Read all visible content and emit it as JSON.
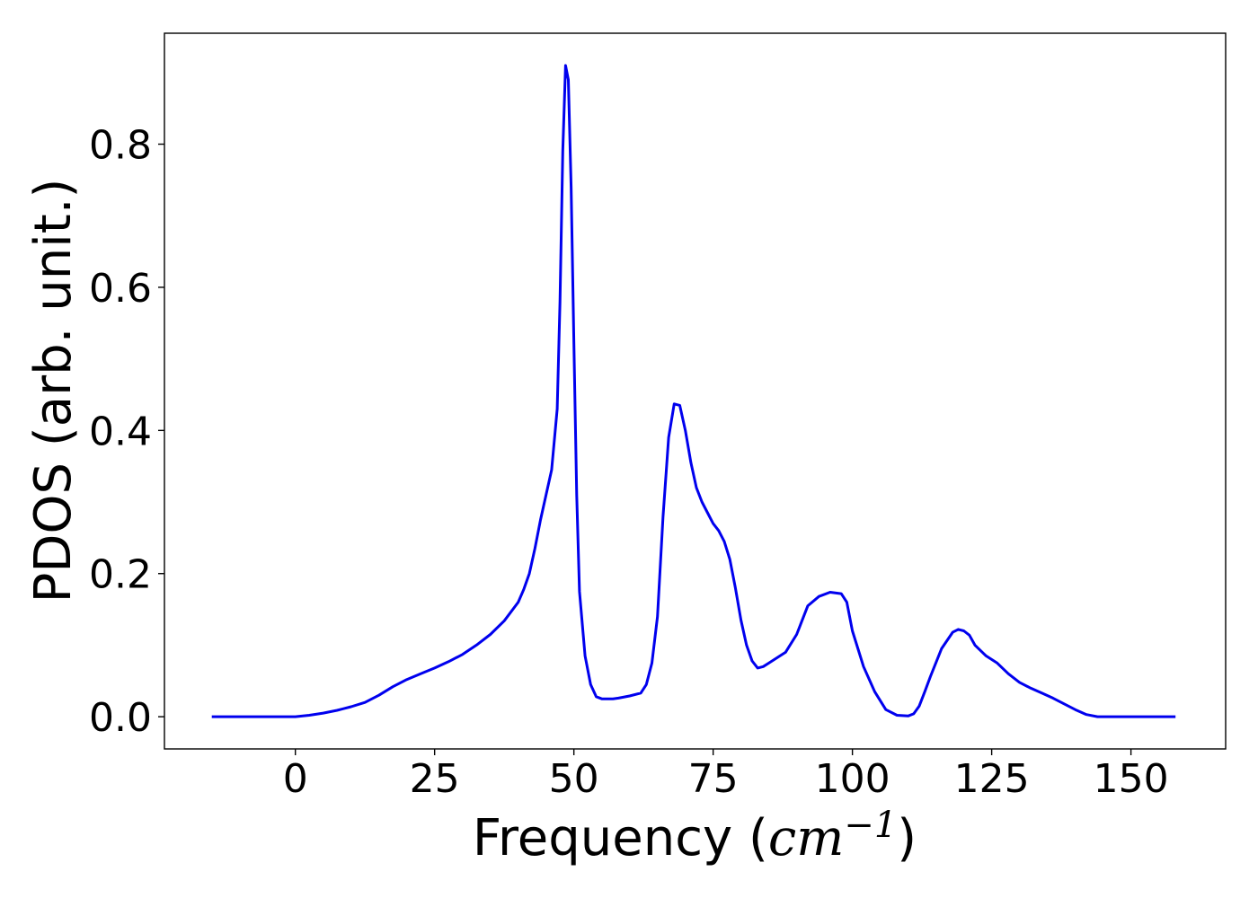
{
  "chart_data": {
    "type": "line",
    "title": "",
    "xlabel": "Frequency (cm⁻¹)",
    "xlabel_parts": {
      "prefix": "Frequency (",
      "unit_italic": "cm",
      "sup": "−1",
      "suffix": ")"
    },
    "ylabel": "PDOS (arb. unit.)",
    "xlim": [
      -23.5,
      167
    ],
    "ylim": [
      -0.045,
      0.955
    ],
    "xticks": [
      0,
      25,
      50,
      75,
      100,
      125,
      150
    ],
    "xtick_labels": [
      "0",
      "25",
      "50",
      "75",
      "100",
      "125",
      "150"
    ],
    "yticks": [
      0.0,
      0.2,
      0.4,
      0.6,
      0.8
    ],
    "ytick_labels": [
      "0.0",
      "0.2",
      "0.4",
      "0.6",
      "0.8"
    ],
    "grid": false,
    "line_color": "#0000ee",
    "series": [
      {
        "x": [
          -15,
          -10,
          -5,
          0,
          2.5,
          5,
          7.5,
          10,
          12.5,
          15,
          17.5,
          20,
          22.5,
          25,
          27.5,
          30,
          32.5,
          35,
          37.5,
          40,
          41,
          42,
          43,
          44,
          45,
          46,
          47,
          47.5,
          48,
          48.5,
          49,
          49.5,
          50,
          50.5,
          51,
          52,
          53,
          54,
          55,
          56,
          57,
          58,
          60,
          62,
          63,
          64,
          65,
          66,
          67,
          68,
          69,
          70,
          71,
          72,
          73,
          74,
          75,
          76,
          77,
          78,
          79,
          80,
          81,
          82,
          83,
          84,
          85,
          86,
          88,
          90,
          92,
          94,
          96,
          98,
          99,
          100,
          102,
          104,
          106,
          108,
          110,
          111,
          112,
          113,
          114,
          116,
          118,
          119,
          120,
          121,
          122,
          124,
          126,
          128,
          130,
          132,
          134,
          136,
          138,
          140,
          142,
          144,
          146,
          148,
          150,
          158
        ],
        "y": [
          0,
          0,
          0,
          0,
          0.002,
          0.005,
          0.009,
          0.014,
          0.02,
          0.03,
          0.042,
          0.052,
          0.06,
          0.068,
          0.077,
          0.087,
          0.1,
          0.115,
          0.134,
          0.16,
          0.178,
          0.2,
          0.235,
          0.275,
          0.31,
          0.345,
          0.43,
          0.58,
          0.79,
          0.91,
          0.89,
          0.74,
          0.52,
          0.31,
          0.175,
          0.085,
          0.045,
          0.028,
          0.025,
          0.025,
          0.025,
          0.026,
          0.029,
          0.033,
          0.045,
          0.075,
          0.14,
          0.28,
          0.39,
          0.437,
          0.435,
          0.4,
          0.355,
          0.32,
          0.3,
          0.285,
          0.27,
          0.26,
          0.245,
          0.22,
          0.18,
          0.135,
          0.1,
          0.078,
          0.068,
          0.07,
          0.075,
          0.08,
          0.09,
          0.115,
          0.155,
          0.168,
          0.174,
          0.172,
          0.16,
          0.12,
          0.07,
          0.035,
          0.01,
          0.002,
          0.001,
          0.004,
          0.015,
          0.035,
          0.056,
          0.095,
          0.118,
          0.122,
          0.12,
          0.114,
          0.1,
          0.085,
          0.075,
          0.06,
          0.048,
          0.04,
          0.033,
          0.026,
          0.018,
          0.01,
          0.003,
          0,
          0,
          0,
          0,
          0
        ]
      }
    ]
  }
}
